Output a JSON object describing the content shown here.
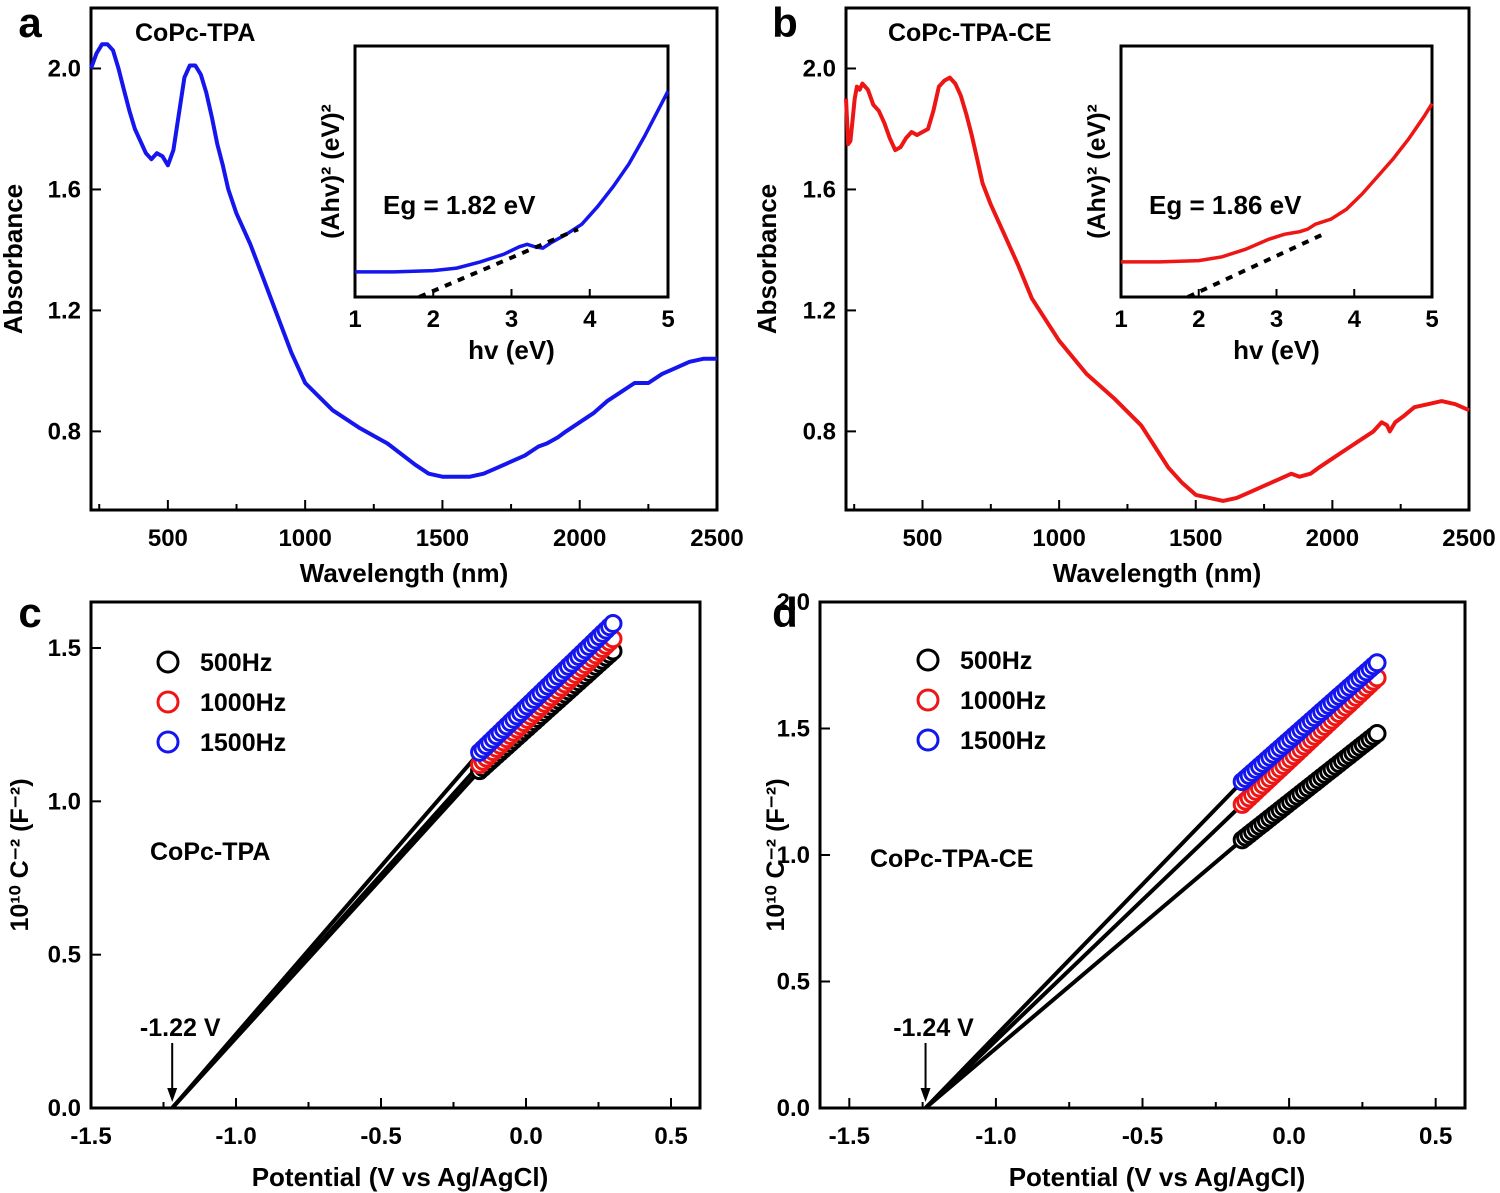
{
  "chart_data": [
    {
      "panel": "a",
      "type": "line",
      "annotation": "CoPc-TPA",
      "xlabel": "Wavelength (nm)",
      "ylabel": "Absorbance",
      "xlim": [
        220,
        2500
      ],
      "ylim": [
        0.54,
        2.2
      ],
      "xticks": [
        500,
        1000,
        1500,
        2000,
        2500
      ],
      "yticks": [
        0.8,
        1.2,
        1.6,
        2.0
      ],
      "ytick_labels": [
        "0.8",
        "1.2",
        "1.6",
        "2.0"
      ],
      "color": "#1515ee",
      "series": [
        {
          "x": [
            220,
            240,
            260,
            280,
            300,
            320,
            340,
            360,
            380,
            400,
            420,
            440,
            460,
            480,
            500,
            520,
            540,
            560,
            580,
            600,
            620,
            640,
            660,
            680,
            700,
            720,
            750,
            800,
            850,
            900,
            950,
            1000,
            1100,
            1200,
            1300,
            1400,
            1450,
            1500,
            1550,
            1600,
            1650,
            1700,
            1750,
            1800,
            1850,
            1880,
            1920,
            1950,
            2000,
            2050,
            2100,
            2150,
            2200,
            2250,
            2300,
            2350,
            2400,
            2450,
            2500
          ],
          "y": [
            2.0,
            2.05,
            2.08,
            2.08,
            2.06,
            2.0,
            1.93,
            1.86,
            1.8,
            1.76,
            1.72,
            1.7,
            1.72,
            1.71,
            1.68,
            1.73,
            1.85,
            1.97,
            2.01,
            2.01,
            1.98,
            1.92,
            1.84,
            1.75,
            1.68,
            1.6,
            1.52,
            1.42,
            1.3,
            1.18,
            1.06,
            0.96,
            0.87,
            0.81,
            0.76,
            0.69,
            0.66,
            0.65,
            0.65,
            0.65,
            0.66,
            0.68,
            0.7,
            0.72,
            0.75,
            0.76,
            0.78,
            0.8,
            0.83,
            0.86,
            0.9,
            0.93,
            0.96,
            0.96,
            0.99,
            1.01,
            1.03,
            1.04,
            1.04
          ]
        }
      ],
      "inset": {
        "xlabel": "hv (eV)",
        "ylabel": "(Ahv)² (eV)²",
        "xlim": [
          1,
          5
        ],
        "ylim": [
          0,
          1
        ],
        "xticks": [
          1,
          2,
          3,
          4,
          5
        ],
        "annotation": "Eg = 1.82 eV",
        "eg": 1.82,
        "curve_x": [
          1.0,
          1.5,
          2.0,
          2.3,
          2.6,
          2.9,
          3.1,
          3.2,
          3.3,
          3.4,
          3.5,
          3.7,
          3.9,
          4.1,
          4.3,
          4.5,
          4.7,
          4.9,
          5.0
        ],
        "curve_y": [
          0.1,
          0.1,
          0.105,
          0.115,
          0.14,
          0.17,
          0.2,
          0.21,
          0.2,
          0.195,
          0.215,
          0.25,
          0.29,
          0.36,
          0.44,
          0.53,
          0.64,
          0.76,
          0.82
        ],
        "fit_line": {
          "x": [
            1.82,
            3.85
          ],
          "y": [
            0.0,
            0.27
          ]
        }
      }
    },
    {
      "panel": "b",
      "type": "line",
      "annotation": "CoPc-TPA-CE",
      "xlabel": "Wavelength (nm)",
      "ylabel": "Absorbance",
      "xlim": [
        220,
        2500
      ],
      "ylim": [
        0.54,
        2.2
      ],
      "xticks": [
        500,
        1000,
        1500,
        2000,
        2500
      ],
      "yticks": [
        0.8,
        1.2,
        1.6,
        2.0
      ],
      "ytick_labels": [
        "0.8",
        "1.2",
        "1.6",
        "2.0"
      ],
      "color": "#ee1515",
      "series": [
        {
          "x": [
            220,
            228,
            236,
            244,
            252,
            260,
            270,
            280,
            300,
            320,
            340,
            360,
            380,
            400,
            420,
            440,
            460,
            480,
            500,
            520,
            540,
            560,
            580,
            600,
            620,
            640,
            660,
            680,
            700,
            720,
            750,
            800,
            850,
            900,
            1000,
            1100,
            1200,
            1300,
            1350,
            1400,
            1450,
            1500,
            1550,
            1600,
            1650,
            1700,
            1750,
            1800,
            1850,
            1880,
            1920,
            1950,
            2000,
            2050,
            2100,
            2150,
            2180,
            2200,
            2210,
            2230,
            2260,
            2300,
            2350,
            2400,
            2450,
            2500
          ],
          "y": [
            1.9,
            1.75,
            1.76,
            1.83,
            1.9,
            1.94,
            1.93,
            1.95,
            1.93,
            1.88,
            1.86,
            1.82,
            1.77,
            1.73,
            1.74,
            1.77,
            1.79,
            1.78,
            1.79,
            1.8,
            1.86,
            1.94,
            1.96,
            1.97,
            1.95,
            1.91,
            1.85,
            1.78,
            1.7,
            1.62,
            1.55,
            1.45,
            1.35,
            1.24,
            1.1,
            0.99,
            0.91,
            0.82,
            0.75,
            0.68,
            0.63,
            0.59,
            0.58,
            0.57,
            0.58,
            0.6,
            0.62,
            0.64,
            0.66,
            0.65,
            0.66,
            0.68,
            0.71,
            0.74,
            0.77,
            0.8,
            0.83,
            0.82,
            0.8,
            0.83,
            0.85,
            0.88,
            0.89,
            0.9,
            0.89,
            0.87
          ]
        }
      ],
      "inset": {
        "xlabel": "hv (eV)",
        "ylabel": "(Ahv)² (eV)²",
        "xlim": [
          1,
          5
        ],
        "ylim": [
          0,
          1
        ],
        "xticks": [
          1,
          2,
          3,
          4,
          5
        ],
        "annotation": "Eg = 1.86 eV",
        "eg": 1.86,
        "curve_x": [
          1.0,
          1.5,
          2.0,
          2.3,
          2.6,
          2.9,
          3.1,
          3.2,
          3.3,
          3.4,
          3.5,
          3.7,
          3.9,
          4.1,
          4.3,
          4.5,
          4.7,
          4.9,
          5.0
        ],
        "curve_y": [
          0.14,
          0.14,
          0.145,
          0.16,
          0.19,
          0.23,
          0.25,
          0.255,
          0.26,
          0.27,
          0.29,
          0.31,
          0.35,
          0.41,
          0.48,
          0.55,
          0.63,
          0.72,
          0.77
        ],
        "fit_line": {
          "x": [
            1.86,
            3.6
          ],
          "y": [
            0.0,
            0.25
          ]
        }
      }
    },
    {
      "panel": "c",
      "type": "scatter",
      "annotation": "CoPc-TPA",
      "xlabel": "Potential (V vs Ag/AgCl)",
      "ylabel": "10¹⁰ C⁻² (F⁻²)",
      "xlim": [
        -1.5,
        0.6
      ],
      "ylim": [
        0,
        1.65
      ],
      "xticks": [
        -1.5,
        -1.0,
        -0.5,
        0.0,
        0.5
      ],
      "xtick_labels": [
        "-1.5",
        "-1.0",
        "-0.5",
        "0.0",
        "0.5"
      ],
      "yticks": [
        0.0,
        0.5,
        1.0,
        1.5
      ],
      "ytick_labels": [
        "0.0",
        "0.5",
        "1.0",
        "1.5"
      ],
      "x_intercept_label": "-1.22 V",
      "x_intercept": -1.22,
      "series": [
        {
          "name": "500Hz",
          "color": "#000000",
          "x_start": -0.16,
          "y_start": 1.1,
          "x_end": 0.3,
          "y_end": 1.49
        },
        {
          "name": "1000Hz",
          "color": "#ee1515",
          "x_start": -0.16,
          "y_start": 1.12,
          "x_end": 0.3,
          "y_end": 1.53
        },
        {
          "name": "1500Hz",
          "color": "#1515ee",
          "x_start": -0.16,
          "y_start": 1.16,
          "x_end": 0.3,
          "y_end": 1.58
        }
      ]
    },
    {
      "panel": "d",
      "type": "scatter",
      "annotation": "CoPc-TPA-CE",
      "xlabel": "Potential (V vs Ag/AgCl)",
      "ylabel": "10¹⁰ C⁻² (F⁻²)",
      "xlim": [
        -1.6,
        0.6
      ],
      "ylim": [
        0,
        2.0
      ],
      "xticks": [
        -1.5,
        -1.0,
        -0.5,
        0.0,
        0.5
      ],
      "xtick_labels": [
        "-1.5",
        "-1.0",
        "-0.5",
        "0.0",
        "0.5"
      ],
      "yticks": [
        0.0,
        0.5,
        1.0,
        1.5,
        2.0
      ],
      "ytick_labels": [
        "0.0",
        "0.5",
        "1.0",
        "1.5",
        "2.0"
      ],
      "x_intercept_label": "-1.24 V",
      "x_intercept": -1.24,
      "series": [
        {
          "name": "500Hz",
          "color": "#000000",
          "x_start": -0.16,
          "y_start": 1.06,
          "x_end": 0.3,
          "y_end": 1.48
        },
        {
          "name": "1000Hz",
          "color": "#ee1515",
          "x_start": -0.16,
          "y_start": 1.2,
          "x_end": 0.3,
          "y_end": 1.7
        },
        {
          "name": "1500Hz",
          "color": "#1515ee",
          "x_start": -0.16,
          "y_start": 1.29,
          "x_end": 0.3,
          "y_end": 1.76
        }
      ]
    }
  ]
}
